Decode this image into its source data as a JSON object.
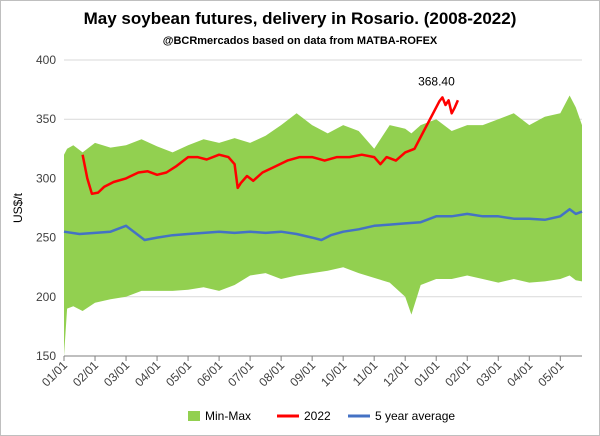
{
  "chart_data": {
    "type": "area",
    "title": "May soybean futures, delivery in Rosario. (2008-2022)",
    "subtitle": "@BCRmercados  based on data  from MATBA-ROFEX",
    "ylabel": "US$/t",
    "xlabel": "",
    "ylim": [
      150,
      400
    ],
    "yticks": [
      150,
      200,
      250,
      300,
      350,
      400
    ],
    "xlim": [
      0,
      16.7
    ],
    "x_ticks": [
      {
        "label": "01/01",
        "x": 0
      },
      {
        "label": "02/01",
        "x": 1
      },
      {
        "label": "03/01",
        "x": 2
      },
      {
        "label": "04/01",
        "x": 3
      },
      {
        "label": "05/01",
        "x": 4
      },
      {
        "label": "06/01",
        "x": 5
      },
      {
        "label": "07/01",
        "x": 6
      },
      {
        "label": "08/01",
        "x": 7
      },
      {
        "label": "09/01",
        "x": 8
      },
      {
        "label": "10/01",
        "x": 9
      },
      {
        "label": "11/01",
        "x": 10
      },
      {
        "label": "12/01",
        "x": 11
      },
      {
        "label": "01/01",
        "x": 12
      },
      {
        "label": "02/01",
        "x": 13
      },
      {
        "label": "03/01",
        "x": 14
      },
      {
        "label": "04/01",
        "x": 15
      },
      {
        "label": "05/01",
        "x": 16
      }
    ],
    "grid": true,
    "legend_position": "bottom",
    "series": [
      {
        "name": "Min-Max",
        "kind": "band",
        "color": "#92D050",
        "x": [
          0,
          0.1,
          0.3,
          0.6,
          1.0,
          1.5,
          2.0,
          2.5,
          3.0,
          3.5,
          4.0,
          4.5,
          5.0,
          5.5,
          6.0,
          6.5,
          7.0,
          7.5,
          8.0,
          8.5,
          9.0,
          9.5,
          10.0,
          10.5,
          11.0,
          11.2,
          11.5,
          12.0,
          12.5,
          13.0,
          13.5,
          14.0,
          14.5,
          15.0,
          15.5,
          16.0,
          16.3,
          16.5,
          16.7
        ],
        "low": [
          150,
          190,
          192,
          188,
          195,
          198,
          200,
          205,
          205,
          205,
          206,
          208,
          205,
          210,
          218,
          220,
          215,
          218,
          220,
          222,
          225,
          220,
          216,
          212,
          200,
          185,
          210,
          215,
          215,
          218,
          215,
          212,
          215,
          212,
          213,
          215,
          218,
          214,
          213
        ],
        "high": [
          320,
          325,
          328,
          322,
          330,
          326,
          328,
          333,
          327,
          322,
          328,
          333,
          330,
          334,
          330,
          336,
          345,
          355,
          345,
          338,
          345,
          340,
          325,
          345,
          342,
          338,
          345,
          350,
          340,
          345,
          345,
          350,
          355,
          345,
          352,
          355,
          370,
          360,
          345
        ]
      },
      {
        "name": "2022",
        "kind": "line",
        "color": "#FF0000",
        "x": [
          0.6,
          0.75,
          0.9,
          1.1,
          1.3,
          1.6,
          2.0,
          2.4,
          2.7,
          3.0,
          3.3,
          3.6,
          4.0,
          4.3,
          4.6,
          5.0,
          5.3,
          5.5,
          5.6,
          5.7,
          5.9,
          6.1,
          6.4,
          6.8,
          7.2,
          7.6,
          8.0,
          8.4,
          8.8,
          9.2,
          9.6,
          10.0,
          10.2,
          10.4,
          10.7,
          11.0,
          11.3,
          11.6,
          11.9,
          12.1,
          12.2,
          12.3,
          12.4,
          12.5,
          12.6,
          12.7
        ],
        "values": [
          320,
          300,
          287,
          288,
          293,
          297,
          300,
          305,
          306,
          303,
          305,
          310,
          318,
          318,
          316,
          320,
          318,
          312,
          292,
          296,
          302,
          298,
          305,
          310,
          315,
          318,
          318,
          315,
          318,
          318,
          320,
          318,
          312,
          318,
          315,
          322,
          325,
          340,
          355,
          365,
          368.4,
          362,
          366,
          355,
          360,
          366
        ]
      },
      {
        "name": "5 year average",
        "kind": "line",
        "color": "#4472C4",
        "x": [
          0,
          0.5,
          1.0,
          1.5,
          2.0,
          2.3,
          2.6,
          3.0,
          3.5,
          4.0,
          4.5,
          5.0,
          5.5,
          6.0,
          6.5,
          7.0,
          7.5,
          8.0,
          8.3,
          8.6,
          9.0,
          9.5,
          10.0,
          10.5,
          11.0,
          11.5,
          12.0,
          12.5,
          13.0,
          13.5,
          14.0,
          14.5,
          15.0,
          15.5,
          16.0,
          16.3,
          16.5,
          16.7
        ],
        "values": [
          255,
          253,
          254,
          255,
          260,
          254,
          248,
          250,
          252,
          253,
          254,
          255,
          254,
          255,
          254,
          255,
          253,
          250,
          248,
          252,
          255,
          257,
          260,
          261,
          262,
          263,
          268,
          268,
          270,
          268,
          268,
          266,
          266,
          265,
          268,
          274,
          270,
          272
        ]
      }
    ],
    "annotations": [
      {
        "text": "368.40",
        "x": 12.2,
        "y": 368.4
      }
    ]
  }
}
